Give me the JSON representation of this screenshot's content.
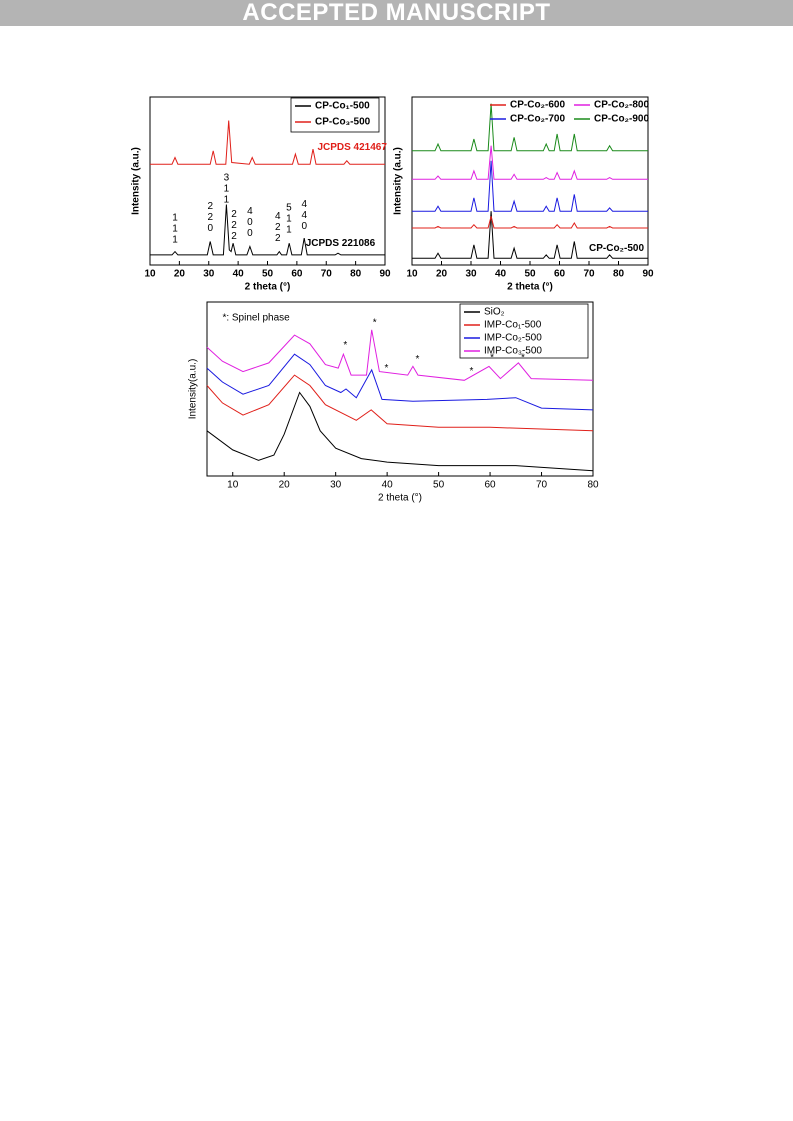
{
  "header": "ACCEPTED MANUSCRIPT",
  "chart_data": [
    {
      "type": "line",
      "xlabel": "2 theta (°)",
      "ylabel": "Intensity (a.u.)",
      "xlim": [
        10,
        90
      ],
      "xticks": [
        10,
        20,
        30,
        40,
        50,
        60,
        70,
        80,
        90
      ],
      "ylim": [
        0,
        100
      ],
      "legend": "upper right",
      "series": [
        {
          "name": "CP-Co₁-500",
          "color": "#000000",
          "x": [
            10,
            17.5,
            18.5,
            19.5,
            29.5,
            30.5,
            31.5,
            35,
            36,
            37,
            37.6,
            38.3,
            39.2,
            43,
            44,
            45,
            53.2,
            54,
            54.8,
            56.5,
            57.4,
            58.3,
            61.5,
            62.5,
            63.5,
            73,
            74,
            75,
            90
          ],
          "values": [
            6,
            6,
            8,
            6,
            6,
            14,
            6,
            6,
            36,
            9,
            8,
            13,
            6,
            6,
            11,
            6,
            6,
            8,
            6,
            6,
            13,
            6,
            6,
            16,
            6,
            6,
            7,
            6,
            6
          ]
        },
        {
          "name": "CP-Co₃-500",
          "color": "#e0201a",
          "x": [
            10,
            17.5,
            18.5,
            19.5,
            30.5,
            31.5,
            32.5,
            35.8,
            36.8,
            37.8,
            43.8,
            44.8,
            45.8,
            58.5,
            59.5,
            60.5,
            64.5,
            65.5,
            66.5,
            76,
            77,
            78,
            90
          ],
          "values": [
            60,
            60,
            64,
            60,
            60,
            68,
            60,
            60,
            86,
            61,
            60,
            64,
            60,
            60,
            66,
            60,
            60,
            69,
            60,
            60,
            62,
            60,
            60
          ]
        }
      ],
      "annotations": [
        {
          "lines": [
            "1",
            "1",
            "1"
          ],
          "x": 18.5,
          "y": 28
        },
        {
          "lines": [
            "2",
            "2",
            "0"
          ],
          "x": 30.5,
          "y": 35
        },
        {
          "lines": [
            "3",
            "1",
            "1"
          ],
          "x": 36,
          "y": 52
        },
        {
          "lines": [
            "2",
            "2",
            "2"
          ],
          "x": 38.6,
          "y": 30
        },
        {
          "lines": [
            "4",
            "0",
            "0"
          ],
          "x": 44,
          "y": 32
        },
        {
          "lines": [
            "4",
            "2",
            "2"
          ],
          "x": 53.5,
          "y": 29
        },
        {
          "lines": [
            "5",
            "1",
            "1"
          ],
          "x": 57.3,
          "y": 34
        },
        {
          "lines": [
            "4",
            "4",
            "0"
          ],
          "x": 62.5,
          "y": 36
        },
        {
          "text": "JCPDS 221086",
          "x": 63,
          "y": 13,
          "color": "#000000"
        },
        {
          "text": "JCPDS 421467",
          "x": 67,
          "y": 70,
          "color": "#e0201a"
        }
      ]
    },
    {
      "type": "line",
      "xlabel": "2 theta (°)",
      "ylabel": "Intensity (a.u.)",
      "xlim": [
        10,
        90
      ],
      "xticks": [
        10,
        20,
        30,
        40,
        50,
        60,
        70,
        80,
        90
      ],
      "ylim": [
        0,
        100
      ],
      "legend": "upper",
      "series": [
        {
          "name": "CP-Co₂-500",
          "color": "#000000",
          "in_legend": false,
          "label_x": 70,
          "label_y": 10,
          "x": [
            10,
            17.8,
            18.8,
            19.8,
            30,
            31,
            32,
            35.8,
            36.8,
            37.8,
            43.6,
            44.6,
            45.6,
            54.5,
            55.5,
            56.5,
            58.2,
            59.2,
            60.2,
            64,
            65,
            66,
            76,
            77,
            78,
            90
          ],
          "values": [
            4,
            4,
            7,
            4,
            4,
            12,
            4,
            4,
            32,
            4,
            4,
            10,
            4,
            4,
            6,
            4,
            4,
            12,
            4,
            4,
            14,
            4,
            4,
            6,
            4,
            4
          ]
        },
        {
          "name": "CP-Co₂-600",
          "color": "#e0201a",
          "x": [
            10,
            17.8,
            18.8,
            19.8,
            30,
            31,
            32,
            35.8,
            36.8,
            37.8,
            43.6,
            44.6,
            45.6,
            54.5,
            55.5,
            56.5,
            58.2,
            59.2,
            60.2,
            64,
            65,
            66,
            76,
            77,
            78,
            90
          ],
          "values": [
            22,
            22,
            23,
            22,
            22,
            24,
            22,
            22,
            29,
            22,
            22,
            23,
            22,
            22,
            22,
            22,
            22,
            24,
            22,
            22,
            25,
            22,
            22,
            23,
            22,
            22
          ]
        },
        {
          "name": "CP-Co₂-700",
          "color": "#1a1ae0",
          "x": [
            10,
            17.8,
            18.8,
            19.8,
            30,
            31,
            32,
            35.8,
            36.8,
            37.8,
            43.6,
            44.6,
            45.6,
            54.5,
            55.5,
            56.5,
            58.2,
            59.2,
            60.2,
            64,
            65,
            66,
            76,
            77,
            78,
            90
          ],
          "values": [
            32,
            32,
            35,
            32,
            32,
            40,
            32,
            32,
            62,
            32,
            32,
            38,
            32,
            32,
            35,
            32,
            32,
            40,
            32,
            32,
            42,
            32,
            32,
            34,
            32,
            32
          ]
        },
        {
          "name": "CP-Co₂-800",
          "color": "#e020e0",
          "x": [
            10,
            17.8,
            18.8,
            19.8,
            30,
            31,
            32,
            35.8,
            36.8,
            37.8,
            43.6,
            44.6,
            45.6,
            54.5,
            55.5,
            56.5,
            58.2,
            59.2,
            60.2,
            64,
            65,
            66,
            76,
            77,
            78,
            90
          ],
          "values": [
            51,
            51,
            53,
            51,
            51,
            56,
            51,
            51,
            71,
            51,
            51,
            54,
            51,
            51,
            52,
            51,
            51,
            55,
            51,
            51,
            56,
            51,
            51,
            52,
            51,
            51
          ]
        },
        {
          "name": "CP-Co₂-900",
          "color": "#1a8a1a",
          "x": [
            10,
            17.8,
            18.8,
            19.8,
            30,
            31,
            32,
            35.8,
            36.8,
            37.8,
            43.6,
            44.6,
            45.6,
            54.5,
            55.5,
            56.5,
            58.2,
            59.2,
            60.2,
            64,
            65,
            66,
            76,
            77,
            78,
            90
          ],
          "values": [
            68,
            68,
            72,
            68,
            68,
            75,
            68,
            68,
            96,
            68,
            68,
            76,
            68,
            68,
            72,
            68,
            68,
            78,
            68,
            68,
            78,
            68,
            68,
            71,
            68,
            68
          ]
        }
      ]
    },
    {
      "type": "line",
      "xlabel": "2 theta (°)",
      "ylabel": "Intensity(a.u.)",
      "xlim": [
        5,
        80
      ],
      "xticks": [
        10,
        20,
        30,
        40,
        50,
        60,
        70,
        80
      ],
      "ylim": [
        0,
        100
      ],
      "legend": "upper right",
      "series": [
        {
          "name": "SiO₂",
          "color": "#000000",
          "x": [
            5,
            10,
            15,
            18,
            20,
            23,
            25,
            27,
            30,
            35,
            40,
            50,
            65,
            80
          ],
          "values": [
            26,
            15,
            9,
            12,
            24,
            48,
            40,
            26,
            16,
            10,
            8,
            6,
            6,
            3
          ]
        },
        {
          "name": "IMP-Co₁-500",
          "color": "#e0201a",
          "x": [
            5,
            8,
            12,
            17,
            22,
            25,
            28,
            34,
            36.9,
            40,
            50,
            60,
            80
          ],
          "values": [
            52,
            42,
            35,
            41,
            58,
            52,
            41,
            32,
            38,
            30,
            28,
            28,
            26
          ]
        },
        {
          "name": "IMP-Co₂-500",
          "color": "#1a1ae0",
          "x": [
            5,
            8,
            12,
            17,
            22,
            25,
            28,
            31,
            32,
            34,
            37,
            39,
            45,
            59.4,
            65,
            70,
            80
          ],
          "values": [
            62,
            54,
            47,
            52,
            70,
            64,
            52,
            48,
            50,
            45,
            61,
            44,
            43,
            44,
            45,
            39,
            38
          ]
        },
        {
          "name": "IMP-Co₃-500",
          "color": "#e020e0",
          "x": [
            5,
            8,
            12,
            17,
            22,
            25,
            28,
            30.5,
            31.5,
            33,
            36,
            37,
            38.5,
            44,
            45,
            46,
            55,
            59.8,
            62,
            65.5,
            68,
            80
          ],
          "values": [
            74,
            66,
            60,
            65,
            81,
            76,
            64,
            62,
            70,
            58,
            58,
            84,
            60,
            58,
            63,
            58,
            55,
            63,
            56,
            65,
            56,
            55
          ]
        }
      ],
      "annotations": [
        {
          "text": "*: Spinel phase",
          "x": 8,
          "y": 91,
          "color": "#000000"
        },
        {
          "text": "*",
          "x": 31.5,
          "y": 75,
          "color": "#000000"
        },
        {
          "text": "*",
          "x": 37.2,
          "y": 88,
          "color": "#000000"
        },
        {
          "text": "*",
          "x": 39.5,
          "y": 62,
          "color": "#000000"
        },
        {
          "text": "*",
          "x": 45.5,
          "y": 67,
          "color": "#000000"
        },
        {
          "text": "*",
          "x": 56,
          "y": 60,
          "color": "#000000"
        },
        {
          "text": "*",
          "x": 60,
          "y": 68,
          "color": "#000000"
        },
        {
          "text": "*",
          "x": 66,
          "y": 68,
          "color": "#000000"
        }
      ]
    }
  ]
}
